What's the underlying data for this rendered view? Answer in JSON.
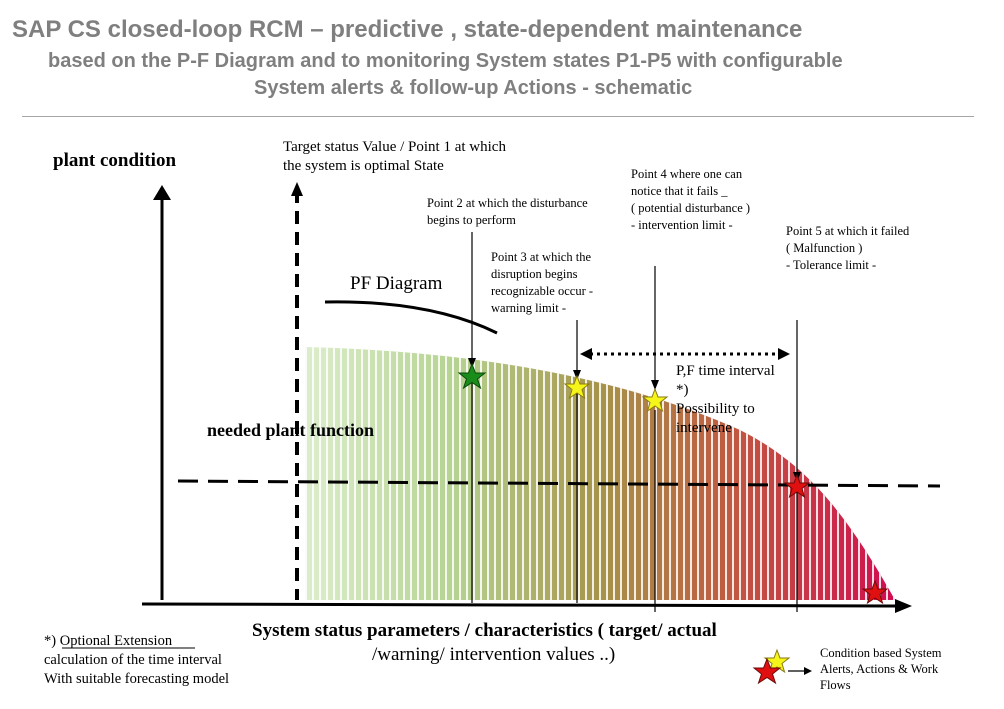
{
  "header": {
    "title": "SAP CS closed-loop RCM – predictive , state-dependent maintenance",
    "subtitle_line1": "based on the P-F Diagram and to monitoring System states P1-P5 with configurable",
    "subtitle_line2": "System alerts & follow-up Actions - schematic"
  },
  "diagram": {
    "y_axis_label": "plant condition",
    "x_axis_label_line1": "System status parameters / characteristics ( target/ actual",
    "x_axis_label_line2": "/warning/ intervention values ..)",
    "needed_function_label": "needed  plant function",
    "pf_label": "PF Diagram",
    "point1": {
      "line1": "Target status Value / Point 1 at which",
      "line2": "the system is optimal State"
    },
    "point2": {
      "line1": "Point 2 at which the disturbance",
      "line2": "begins to perform"
    },
    "point3": {
      "line1": "Point 3 at which the",
      "line2": "disruption begins",
      "line3": "recognizable occur -",
      "line4": "warning limit -"
    },
    "point4": {
      "line1": "Point 4 where one can",
      "line2": "notice  that it fails _",
      "line3": "( potential disturbance )",
      "line4": "- intervention limit -"
    },
    "point5": {
      "line1": "Point 5 at which it failed",
      "line2": "( Malfunction )",
      "line3": "- Tolerance limit -"
    },
    "pf_interval": {
      "line1": "P,F time interval",
      "line2": "*)",
      "line3": "Possibility to",
      "line4": "intervene"
    },
    "colors": {
      "star_green": "#1a8c1a",
      "star_yellow": "#f5f51a",
      "star_red": "#e01010",
      "gradient_start": "#d8ecc8",
      "gradient_mid": "#b8864a",
      "gradient_end": "#d10c50"
    }
  },
  "footnote": {
    "marker": "*) ",
    "heading": "Optional Extension",
    "line2": "calculation of the time interval",
    "line3": "With suitable forecasting model"
  },
  "legend": {
    "line1": "Condition based System",
    "line2": "Alerts, Actions & Work",
    "line3": "Flows"
  }
}
